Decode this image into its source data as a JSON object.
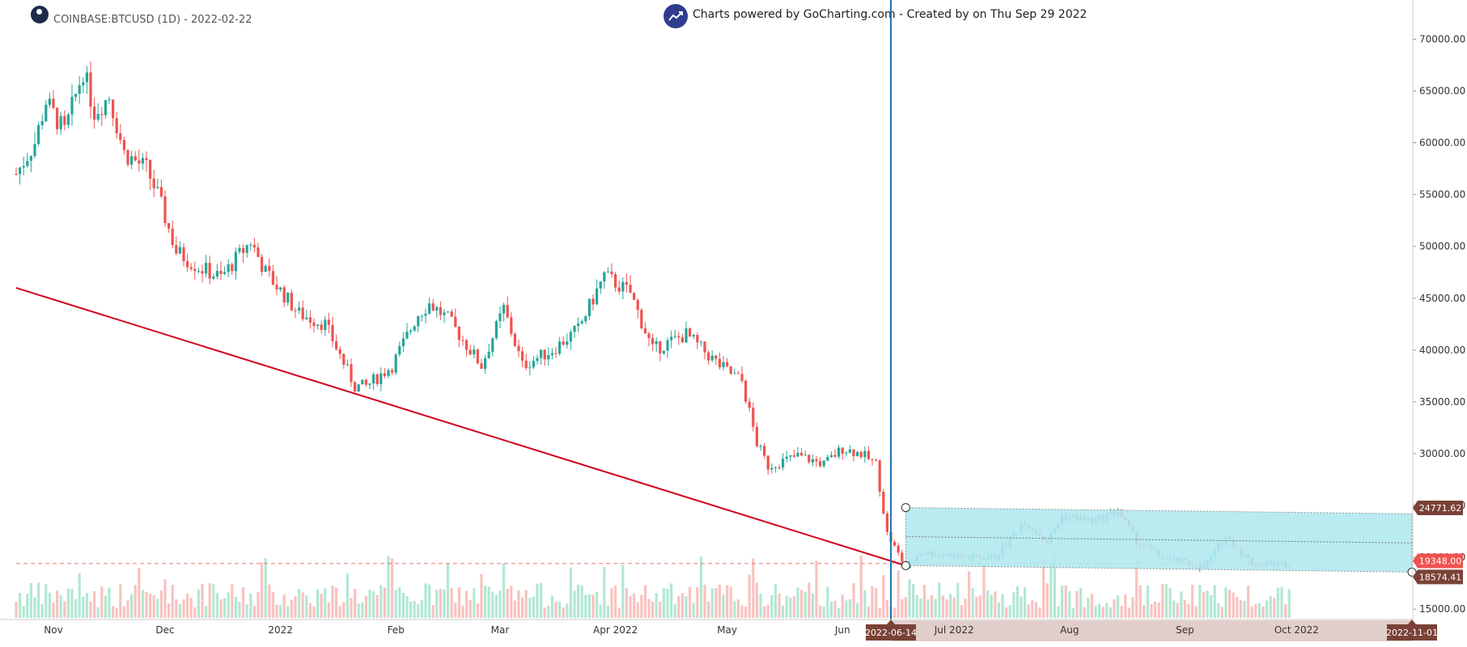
{
  "header": {
    "symbol": "COINBASE:BTCUSD (1D) - 2022-02-22",
    "credit": "Charts powered by GoCharting.com - Created by  on Thu Sep 29 2022"
  },
  "colors": {
    "up": "#26a69a",
    "down": "#ef5350",
    "volume_up": "#a6e3cd",
    "volume_down": "#f7b9b5",
    "trendline": "#d0021b",
    "vertical_line": "#1f77b4",
    "channel_fill": "#b2e9f0",
    "price_tag": "#7a4237",
    "axis_band": "#d9c2bd"
  },
  "chart_data": {
    "type": "candlestick",
    "symbol": "COINBASE:BTCUSD",
    "interval": "1D",
    "x_range": [
      "2021-10-22",
      "2022-11-01"
    ],
    "ylim": [
      14000,
      73000
    ],
    "x_ticks": [
      {
        "label": "Nov",
        "date": "2021-11-01"
      },
      {
        "label": "Dec",
        "date": "2021-12-01"
      },
      {
        "label": "2022",
        "date": "2022-01-01"
      },
      {
        "label": "Feb",
        "date": "2022-02-01"
      },
      {
        "label": "Mar",
        "date": "2022-03-01"
      },
      {
        "label": "Apr 2022",
        "date": "2022-04-01"
      },
      {
        "label": "May",
        "date": "2022-05-01"
      },
      {
        "label": "Jun",
        "date": "2022-06-01"
      },
      {
        "label": "Jul 2022",
        "date": "2022-07-01"
      },
      {
        "label": "Aug",
        "date": "2022-08-01"
      },
      {
        "label": "Sep",
        "date": "2022-09-01"
      },
      {
        "label": "Oct 2022",
        "date": "2022-10-01"
      }
    ],
    "y_ticks": [
      "70000.00",
      "65000.00",
      "60000.00",
      "55000.00",
      "50000.00",
      "45000.00",
      "40000.00",
      "35000.00",
      "30000.00",
      "25000.00",
      "20000.00",
      "15000.00"
    ],
    "y_tick_values": [
      70000,
      65000,
      60000,
      55000,
      50000,
      45000,
      40000,
      35000,
      30000,
      25000,
      20000,
      15000
    ],
    "price_anchors": [
      {
        "date": "2021-10-22",
        "close": 57000
      },
      {
        "date": "2021-10-27",
        "close": 60000
      },
      {
        "date": "2021-10-30",
        "close": 64000
      },
      {
        "date": "2021-11-04",
        "close": 61000
      },
      {
        "date": "2021-11-09",
        "close": 67000
      },
      {
        "date": "2021-11-12",
        "close": 63000
      },
      {
        "date": "2021-11-16",
        "close": 64500
      },
      {
        "date": "2021-11-20",
        "close": 59000
      },
      {
        "date": "2021-11-26",
        "close": 57500
      },
      {
        "date": "2021-11-29",
        "close": 55000
      },
      {
        "date": "2021-12-04",
        "close": 49500
      },
      {
        "date": "2021-12-10",
        "close": 48000
      },
      {
        "date": "2021-12-16",
        "close": 47000
      },
      {
        "date": "2021-12-24",
        "close": 50500
      },
      {
        "date": "2021-12-28",
        "close": 47500
      },
      {
        "date": "2022-01-06",
        "close": 43500
      },
      {
        "date": "2022-01-13",
        "close": 42500
      },
      {
        "date": "2022-01-21",
        "close": 36500
      },
      {
        "date": "2022-01-24",
        "close": 36500
      },
      {
        "date": "2022-01-31",
        "close": 38500
      },
      {
        "date": "2022-02-07",
        "close": 43500
      },
      {
        "date": "2022-02-10",
        "close": 44500
      },
      {
        "date": "2022-02-15",
        "close": 43000
      },
      {
        "date": "2022-02-24",
        "close": 38500
      },
      {
        "date": "2022-03-02",
        "close": 44000
      },
      {
        "date": "2022-03-07",
        "close": 38500
      },
      {
        "date": "2022-03-15",
        "close": 40000
      },
      {
        "date": "2022-03-22",
        "close": 42000
      },
      {
        "date": "2022-03-29",
        "close": 47200
      },
      {
        "date": "2022-04-05",
        "close": 45500
      },
      {
        "date": "2022-04-11",
        "close": 40000
      },
      {
        "date": "2022-04-20",
        "close": 41500
      },
      {
        "date": "2022-04-29",
        "close": 38500
      },
      {
        "date": "2022-05-05",
        "close": 37000
      },
      {
        "date": "2022-05-09",
        "close": 31000
      },
      {
        "date": "2022-05-12",
        "close": 28800
      },
      {
        "date": "2022-05-20",
        "close": 29800
      },
      {
        "date": "2022-05-27",
        "close": 29000
      },
      {
        "date": "2022-06-01",
        "close": 30500
      },
      {
        "date": "2022-06-06",
        "close": 30000
      },
      {
        "date": "2022-06-10",
        "close": 29000
      },
      {
        "date": "2022-06-13",
        "close": 22300
      },
      {
        "date": "2022-06-18",
        "close": 19000
      },
      {
        "date": "2022-06-22",
        "close": 20500
      },
      {
        "date": "2022-07-05",
        "close": 20000
      },
      {
        "date": "2022-07-12",
        "close": 20000
      },
      {
        "date": "2022-07-20",
        "close": 23500
      },
      {
        "date": "2022-07-26",
        "close": 21500
      },
      {
        "date": "2022-07-30",
        "close": 24000
      },
      {
        "date": "2022-08-08",
        "close": 23500
      },
      {
        "date": "2022-08-14",
        "close": 24500
      },
      {
        "date": "2022-08-19",
        "close": 21500
      },
      {
        "date": "2022-08-26",
        "close": 20000
      },
      {
        "date": "2022-09-06",
        "close": 19000
      },
      {
        "date": "2022-09-12",
        "close": 22000
      },
      {
        "date": "2022-09-19",
        "close": 19400
      },
      {
        "date": "2022-09-29",
        "close": 19400
      }
    ],
    "trendline": {
      "start": {
        "date": "2021-10-22",
        "price": 46000
      },
      "end": {
        "date": "2022-06-18",
        "price": 19200
      }
    },
    "vertical_marker": {
      "date": "2022-06-14",
      "label": "2022-06-14"
    },
    "channel": {
      "top_start": {
        "date": "2022-06-18",
        "price": 24800
      },
      "top_end": {
        "date": "2022-11-01",
        "price": 24200
      },
      "bottom_start": {
        "date": "2022-06-18",
        "price": 19200
      },
      "bottom_end": {
        "date": "2022-11-01",
        "price": 18574.41
      },
      "end_label": "2022-11-01"
    },
    "horizontal_line": {
      "price": 19400
    },
    "price_labels": [
      "24771.62",
      "19348.00",
      "18574.41"
    ],
    "price_label_values": [
      24771.62,
      19348.0,
      18574.41
    ]
  }
}
